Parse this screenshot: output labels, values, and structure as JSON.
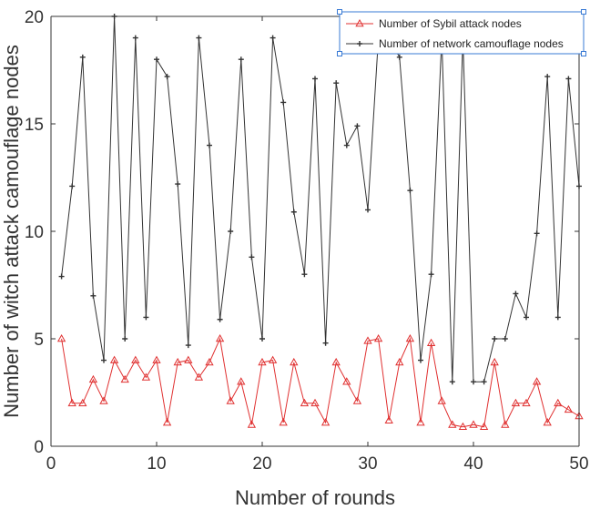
{
  "chart_data": {
    "type": "line",
    "title": "",
    "xlabel": "Number of rounds",
    "ylabel": "Number of witch attack camouflage nodes",
    "xlim": [
      0,
      50
    ],
    "ylim": [
      0,
      20
    ],
    "xticks": [
      0,
      10,
      20,
      30,
      40,
      50
    ],
    "yticks": [
      0,
      5,
      10,
      15,
      20
    ],
    "grid": false,
    "legend_position": "top-right",
    "x": [
      1,
      2,
      3,
      4,
      5,
      6,
      7,
      8,
      9,
      10,
      11,
      12,
      13,
      14,
      15,
      16,
      17,
      18,
      19,
      20,
      21,
      22,
      23,
      24,
      25,
      26,
      27,
      28,
      29,
      30,
      31,
      32,
      33,
      34,
      35,
      36,
      37,
      38,
      39,
      40,
      41,
      42,
      43,
      44,
      45,
      46,
      47,
      48,
      49,
      50
    ],
    "series": [
      {
        "name": "Number of Sybil attack nodes",
        "color": "#e03030",
        "marker": "triangle",
        "values": [
          5,
          2,
          2,
          3.1,
          2.1,
          4,
          3.1,
          4,
          3.2,
          4,
          1.1,
          3.9,
          4,
          3.2,
          3.9,
          5,
          2.1,
          3,
          1,
          3.9,
          4,
          1.1,
          3.9,
          2,
          2,
          1.1,
          3.9,
          3,
          2.1,
          4.9,
          5,
          1.2,
          3.9,
          5,
          1.1,
          4.8,
          2.1,
          1,
          0.9,
          1,
          0.9,
          3.9,
          1,
          2,
          2,
          3,
          1.1,
          2,
          1.7,
          1.4
        ]
      },
      {
        "name": "Number of network camouflage nodes",
        "color": "#333333",
        "marker": "plus",
        "values": [
          7.9,
          12.1,
          18.1,
          7,
          4,
          20.1,
          5,
          19,
          6,
          18,
          17.2,
          12.2,
          4.7,
          19,
          14,
          5.9,
          10,
          18,
          8.8,
          5,
          19,
          16,
          10.9,
          8,
          17.1,
          4.8,
          16.9,
          14,
          14.9,
          11,
          19,
          19,
          18.1,
          11.9,
          4,
          8,
          19,
          3,
          19,
          3,
          3,
          5,
          5,
          7.1,
          6,
          9.9,
          17.2,
          6,
          17.1,
          12.1
        ]
      }
    ]
  }
}
